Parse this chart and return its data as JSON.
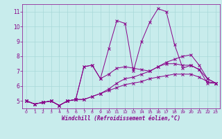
{
  "xlabel": "Windchill (Refroidissement éolien,°C)",
  "ylabel": "",
  "background_color": "#c8ecec",
  "grid_color": "#a8d8d8",
  "line_color": "#880088",
  "xlim": [
    -0.5,
    23.5
  ],
  "ylim": [
    4.5,
    11.5
  ],
  "xticks": [
    0,
    1,
    2,
    3,
    4,
    5,
    6,
    7,
    8,
    9,
    10,
    11,
    12,
    13,
    14,
    15,
    16,
    17,
    18,
    19,
    20,
    21,
    22,
    23
  ],
  "yticks": [
    5,
    6,
    7,
    8,
    9,
    10,
    11
  ],
  "series": [
    [
      5.0,
      4.8,
      4.9,
      5.0,
      4.7,
      5.0,
      5.1,
      7.3,
      7.4,
      6.5,
      8.5,
      10.4,
      10.2,
      7.0,
      9.0,
      10.3,
      11.2,
      11.0,
      8.8,
      7.2,
      7.4,
      7.1,
      6.2,
      6.2
    ],
    [
      5.0,
      4.8,
      4.9,
      5.0,
      4.7,
      5.0,
      5.1,
      5.1,
      5.3,
      5.5,
      5.8,
      6.2,
      6.5,
      6.6,
      6.8,
      7.0,
      7.3,
      7.6,
      7.8,
      8.0,
      8.1,
      7.4,
      6.5,
      6.2
    ],
    [
      5.0,
      4.8,
      4.9,
      5.0,
      4.7,
      5.0,
      5.1,
      5.1,
      5.3,
      5.5,
      5.7,
      5.9,
      6.1,
      6.2,
      6.3,
      6.5,
      6.6,
      6.7,
      6.8,
      6.8,
      6.8,
      6.6,
      6.3,
      6.2
    ],
    [
      5.0,
      4.8,
      4.9,
      5.0,
      4.7,
      5.0,
      5.1,
      7.3,
      7.4,
      6.5,
      6.8,
      7.2,
      7.3,
      7.2,
      7.1,
      7.0,
      7.3,
      7.5,
      7.5,
      7.4,
      7.4,
      7.1,
      6.5,
      6.2
    ]
  ],
  "tick_fontsize_x": 4.5,
  "tick_fontsize_y": 5.5,
  "xlabel_fontsize": 5.5,
  "linewidth": 0.7,
  "markersize": 2.5
}
